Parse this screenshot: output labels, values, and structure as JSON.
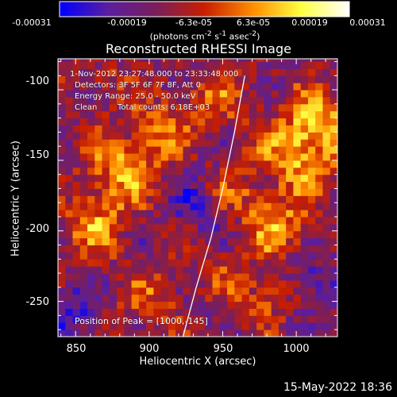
{
  "colorbar": {
    "tick_labels": [
      "-0.00031",
      "-0.00019",
      "-6.3e-05",
      "6.3e-05",
      "0.00019",
      "0.00031"
    ],
    "unit_prefix": "(photons cm",
    "unit_exp1": "-2",
    "unit_mid": " s",
    "unit_exp2": "-1",
    "unit_mid2": " asec",
    "unit_exp3": "-2",
    "unit_suffix": ")",
    "range": [
      -0.00031,
      0.00031
    ],
    "colors": [
      "#0000ff",
      "#5a1ea0",
      "#7a1e5a",
      "#c81e00",
      "#ff8c00",
      "#ffff40",
      "#ffffff"
    ]
  },
  "chart_data": {
    "type": "heatmap",
    "title": "Reconstructed RHESSI Image",
    "xlabel": "Heliocentric X (arcsec)",
    "ylabel": "Heliocentric Y (arcsec)",
    "xlim": [
      838,
      1028
    ],
    "ylim": [
      -275,
      -78
    ],
    "x_ticks": [
      850,
      900,
      950,
      1000
    ],
    "y_ticks": [
      -100,
      -150,
      -200,
      -250
    ],
    "x_tick_labels": [
      "850",
      "900",
      "950",
      "1000"
    ],
    "y_tick_labels": [
      "-100",
      "-150",
      "-200",
      "-250"
    ],
    "limb_curve": {
      "x": [
        923,
        932,
        942,
        950,
        958,
        965
      ],
      "y": [
        -275,
        -240,
        -205,
        -170,
        -130,
        -90
      ]
    },
    "annotations": {
      "time": "1-Nov-2012 23:27:48.000 to 23:33:48.000",
      "detectors": "Detectors: 3F 5F 6F 7F 8F, Att 0",
      "energy": "Energy Range: 25.0 - 50.0 keV",
      "clean": "Clean",
      "counts": "Total counts: 6.18E+03",
      "peak": "Position of Peak = [1000,-145]"
    }
  },
  "timestamp": "15-May-2022 18:36"
}
